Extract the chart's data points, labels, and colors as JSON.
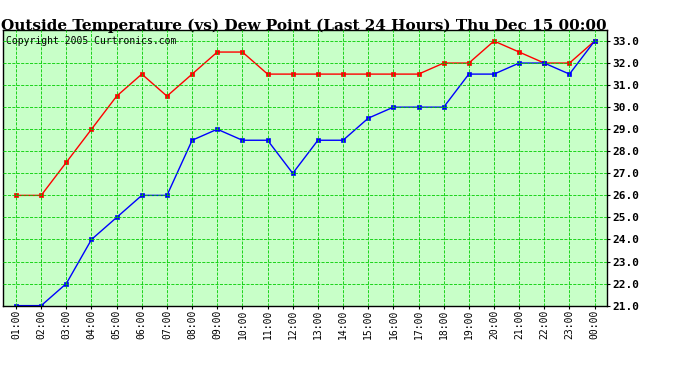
{
  "title": "Outside Temperature (vs) Dew Point (Last 24 Hours) Thu Dec 15 00:00",
  "copyright": "Copyright 2005 Curtronics.com",
  "x_labels": [
    "01:00",
    "02:00",
    "03:00",
    "04:00",
    "05:00",
    "06:00",
    "07:00",
    "08:00",
    "09:00",
    "10:00",
    "11:00",
    "12:00",
    "13:00",
    "14:00",
    "15:00",
    "16:00",
    "17:00",
    "18:00",
    "19:00",
    "20:00",
    "21:00",
    "22:00",
    "23:00",
    "00:00"
  ],
  "ylim": [
    21.0,
    33.5
  ],
  "yticks": [
    21.0,
    22.0,
    23.0,
    24.0,
    25.0,
    26.0,
    27.0,
    28.0,
    29.0,
    30.0,
    31.0,
    32.0,
    33.0
  ],
  "red_data": [
    26.0,
    26.0,
    27.5,
    29.0,
    30.5,
    31.5,
    30.5,
    31.5,
    32.5,
    32.5,
    31.5,
    31.5,
    31.5,
    31.5,
    31.5,
    31.5,
    31.5,
    32.0,
    32.0,
    33.0,
    32.5,
    32.0,
    32.0,
    33.0
  ],
  "blue_data": [
    21.0,
    21.0,
    22.0,
    24.0,
    25.0,
    26.0,
    26.0,
    28.5,
    29.0,
    28.5,
    28.5,
    27.0,
    28.5,
    28.5,
    29.5,
    30.0,
    30.0,
    30.0,
    31.5,
    31.5,
    32.0,
    32.0,
    31.5,
    33.0
  ],
  "red_color": "#ff0000",
  "blue_color": "#0000ff",
  "bg_color": "#c8ffc8",
  "grid_color": "#00cc00",
  "title_fontsize": 11,
  "copyright_fontsize": 7,
  "marker_size": 3,
  "tick_fontsize": 8,
  "xtick_fontsize": 7
}
